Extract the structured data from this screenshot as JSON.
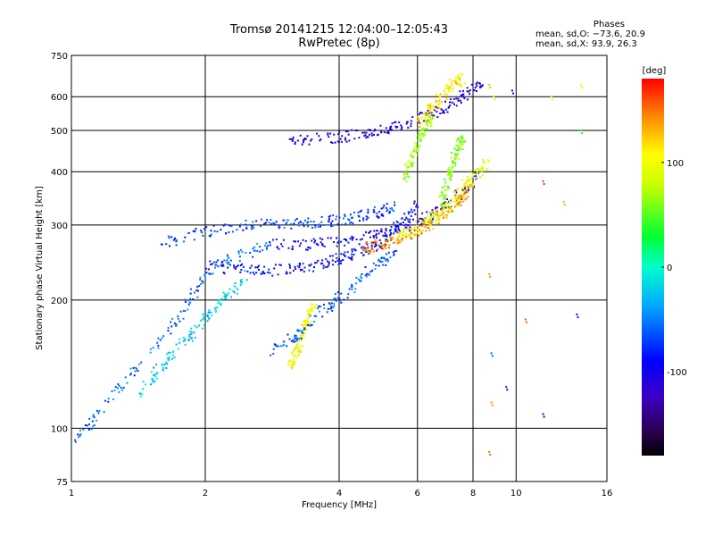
{
  "chart_data": {
    "type": "scatter",
    "title": "Tromsø 20141215 12:04:00–12:05:43",
    "subtitle": "RwPretec (8p)",
    "xlabel": "Frequency [MHz]",
    "ylabel": "Stationary phase Virtual Height [km]",
    "x_scale": "log",
    "y_scale": "log",
    "xlim": [
      1,
      16
    ],
    "ylim": [
      75,
      750
    ],
    "x_ticks": [
      1,
      2,
      4,
      6,
      8,
      10,
      16
    ],
    "y_ticks": [
      75,
      100,
      200,
      300,
      400,
      500,
      600,
      750
    ],
    "grid": true,
    "phases_box": {
      "title": "Phases",
      "line_o": "mean, sd,O: −73.6, 20.9",
      "line_x": "mean, sd,X:  93.9, 26.3"
    },
    "colorbar": {
      "label": "[deg]",
      "range": [
        -180,
        180
      ],
      "ticks": [
        100,
        0,
        -100
      ],
      "colormap": "rainbow (black-blue-cyan-green-yellow-red)"
    },
    "traces": [
      {
        "x": [
          1.0,
          1.2,
          1.5,
          1.8,
          2.0,
          2.3,
          2.8
        ],
        "y": [
          90,
          115,
          150,
          190,
          230,
          250,
          270
        ],
        "phase": -60
      },
      {
        "x": [
          1.6,
          2.0,
          2.5,
          3.0,
          3.6,
          4.2,
          4.8,
          5.3
        ],
        "y": [
          270,
          290,
          300,
          300,
          305,
          310,
          320,
          330
        ],
        "phase": -70
      },
      {
        "x": [
          2.0,
          2.5,
          3.0,
          3.5,
          4.0,
          4.5,
          5.0,
          5.5,
          6.0
        ],
        "y": [
          240,
          235,
          235,
          240,
          250,
          260,
          275,
          300,
          340
        ],
        "phase": -90
      },
      {
        "x": [
          2.8,
          3.5,
          4.2,
          5.0,
          5.8,
          6.6,
          7.4,
          8.2
        ],
        "y": [
          270,
          270,
          275,
          285,
          300,
          320,
          350,
          390
        ],
        "phase": -100
      },
      {
        "x": [
          3.0,
          3.8,
          4.5,
          5.2,
          6.0,
          6.8,
          7.6,
          8.4
        ],
        "y": [
          470,
          480,
          490,
          505,
          530,
          560,
          600,
          640
        ],
        "phase": -110
      },
      {
        "x": [
          4.5,
          5.0,
          5.5,
          6.0,
          6.5,
          7.0,
          7.5,
          8.0
        ],
        "y": [
          265,
          270,
          280,
          290,
          305,
          325,
          345,
          375
        ],
        "phase": 140
      },
      {
        "x": [
          5.5,
          6.0,
          6.5,
          7.0,
          7.5,
          8.0,
          8.6
        ],
        "y": [
          285,
          295,
          310,
          330,
          360,
          390,
          420
        ],
        "phase": 95
      },
      {
        "x": [
          6.0,
          6.4,
          6.8,
          7.2,
          7.6
        ],
        "y": [
          520,
          560,
          600,
          640,
          660
        ],
        "phase": 110
      },
      {
        "x": [
          3.1,
          3.2,
          3.3,
          3.4,
          3.5
        ],
        "y": [
          140,
          150,
          165,
          180,
          195
        ],
        "phase": 100
      },
      {
        "x": [
          2.8,
          3.2,
          3.7,
          4.2,
          4.8,
          5.4
        ],
        "y": [
          150,
          165,
          190,
          210,
          240,
          260
        ],
        "phase": -60
      },
      {
        "x": [
          1.4,
          1.6,
          1.8,
          2.0,
          2.2,
          2.5
        ],
        "y": [
          120,
          140,
          160,
          180,
          200,
          230
        ],
        "phase": -20
      },
      {
        "x": [
          5.6,
          5.8,
          6.0,
          6.2,
          6.5
        ],
        "y": [
          380,
          420,
          460,
          500,
          540
        ],
        "phase": 70
      },
      {
        "x": [
          6.8,
          7.0,
          7.2,
          7.4,
          7.6
        ],
        "y": [
          330,
          380,
          420,
          460,
          480
        ],
        "phase": 60
      }
    ],
    "isolated_points": [
      {
        "x": 8.7,
        "y": 640,
        "phase": 60
      },
      {
        "x": 8.9,
        "y": 600,
        "phase": 80
      },
      {
        "x": 8.7,
        "y": 230,
        "phase": 140
      },
      {
        "x": 8.8,
        "y": 150,
        "phase": -60
      },
      {
        "x": 8.8,
        "y": 115,
        "phase": 140
      },
      {
        "x": 8.7,
        "y": 88,
        "phase": 150
      },
      {
        "x": 9.5,
        "y": 125,
        "phase": -110
      },
      {
        "x": 9.8,
        "y": 620,
        "phase": -100
      },
      {
        "x": 10.5,
        "y": 180,
        "phase": 160
      },
      {
        "x": 11.5,
        "y": 380,
        "phase": 170
      },
      {
        "x": 11.5,
        "y": 108,
        "phase": -110
      },
      {
        "x": 12.8,
        "y": 340,
        "phase": 130
      },
      {
        "x": 13.7,
        "y": 185,
        "phase": -110
      },
      {
        "x": 14.0,
        "y": 640,
        "phase": 90
      },
      {
        "x": 14.0,
        "y": 500,
        "phase": 40
      },
      {
        "x": 12.0,
        "y": 600,
        "phase": 90
      }
    ]
  }
}
